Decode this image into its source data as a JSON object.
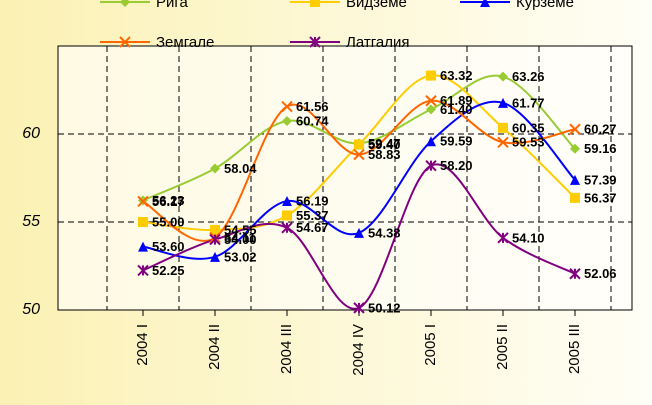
{
  "chart_data": {
    "type": "line",
    "categories": [
      "2004 I",
      "2004 II",
      "2004 III",
      "2004 IV",
      "2005 I",
      "2005 II",
      "2005 III"
    ],
    "series": [
      {
        "name": "Рига",
        "color": "#99cc33",
        "marker": "diamond",
        "values": [
          56.23,
          58.04,
          60.74,
          59.47,
          61.4,
          63.26,
          59.16
        ],
        "value_labels": [
          "56.23",
          "58.04",
          "60.74",
          "59.47",
          "61.40",
          "63.26",
          "59.16"
        ]
      },
      {
        "name": "Видземе",
        "color": "#ffcc00",
        "marker": "square",
        "values": [
          55.0,
          54.55,
          55.37,
          59.4,
          63.32,
          60.35,
          56.37
        ],
        "value_labels": [
          "55.00",
          "54.55",
          "55.37",
          "59.40",
          "63.32",
          "60.35",
          "56.37"
        ]
      },
      {
        "name": "Курземе",
        "color": "#0000ff",
        "marker": "triangle",
        "values": [
          53.6,
          53.02,
          56.19,
          54.38,
          59.59,
          61.77,
          57.39
        ],
        "value_labels": [
          "53.60",
          "53.02",
          "56.19",
          "54.38",
          "59.59",
          "61.77",
          "57.39"
        ]
      },
      {
        "name": "Земгале",
        "color": "#ff6600",
        "marker": "x",
        "values": [
          56.17,
          54.11,
          61.56,
          58.83,
          61.89,
          59.53,
          60.27
        ],
        "value_labels": [
          "56.17",
          "54.11",
          "61.56",
          "58.83",
          "61.89",
          "59.53",
          "60.27"
        ]
      },
      {
        "name": "Латгалия",
        "color": "#800080",
        "marker": "star",
        "values": [
          52.25,
          54.0,
          54.67,
          50.12,
          58.2,
          54.1,
          52.06
        ],
        "value_labels": [
          "52.25",
          "54.00",
          "54.67",
          "50.12",
          "58.20",
          "54.10",
          "52.06"
        ]
      }
    ],
    "ylim": [
      50,
      65
    ],
    "yticks": [
      50,
      55,
      60
    ],
    "grid": true,
    "smooth": true,
    "legend": "top"
  }
}
